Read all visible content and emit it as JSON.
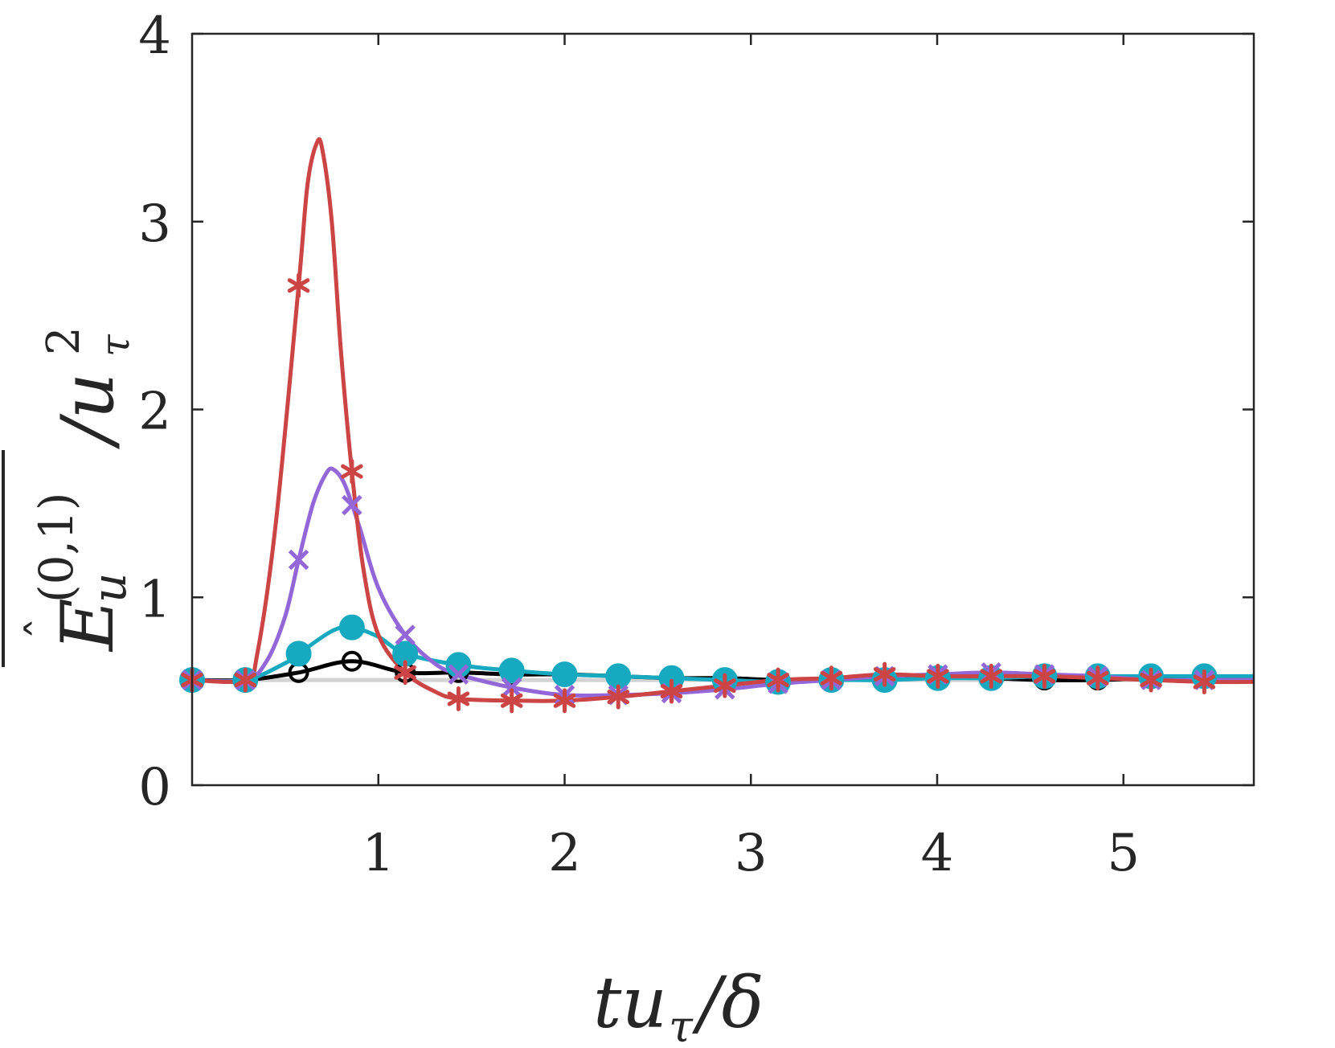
{
  "chart_data": {
    "type": "line",
    "title": "",
    "xlabel": "tu_τ/δ",
    "ylabel": "Ê_u^(0,1) / u_τ^2",
    "xlim": [
      0,
      5.7
    ],
    "ylim": [
      0,
      4
    ],
    "xticks": [
      1,
      2,
      3,
      4,
      5
    ],
    "yticks": [
      0,
      1,
      2,
      3,
      4
    ],
    "grid": false,
    "reference_line": {
      "y": 0.56,
      "color": "#d3d3d3"
    },
    "series": [
      {
        "name": "black-circles",
        "color": "#000000",
        "marker": "circle-open",
        "x": [
          0,
          0.286,
          0.572,
          0.858,
          1.144,
          1.43,
          1.716,
          2.0,
          2.288,
          2.574,
          2.86,
          3.146,
          3.432,
          3.718,
          4.004,
          4.29,
          4.576,
          4.862,
          5.148,
          5.434,
          5.7
        ],
        "y": [
          0.56,
          0.56,
          0.6,
          0.66,
          0.6,
          0.6,
          0.59,
          0.59,
          0.58,
          0.57,
          0.57,
          0.56,
          0.56,
          0.57,
          0.58,
          0.57,
          0.56,
          0.56,
          0.57,
          0.57,
          0.57
        ],
        "marker_x": [
          0,
          0.286,
          0.572,
          0.858,
          1.144,
          1.43,
          1.716,
          2.0,
          2.288,
          2.574,
          2.86,
          3.146,
          3.432,
          3.718,
          4.004,
          4.29,
          4.576,
          4.862,
          5.148,
          5.434
        ]
      },
      {
        "name": "teal-dots",
        "color": "#17a9c0",
        "marker": "circle-filled",
        "x": [
          0,
          0.286,
          0.5,
          0.572,
          0.75,
          0.858,
          1.0,
          1.144,
          1.43,
          1.716,
          2.0,
          2.288,
          2.574,
          2.86,
          3.146,
          3.432,
          3.718,
          4.004,
          4.29,
          4.576,
          4.862,
          5.148,
          5.434,
          5.7
        ],
        "y": [
          0.56,
          0.56,
          0.65,
          0.7,
          0.82,
          0.84,
          0.79,
          0.7,
          0.64,
          0.61,
          0.59,
          0.58,
          0.57,
          0.56,
          0.55,
          0.56,
          0.56,
          0.57,
          0.57,
          0.58,
          0.58,
          0.58,
          0.58,
          0.58
        ],
        "marker_x": [
          0,
          0.286,
          0.572,
          0.858,
          1.144,
          1.43,
          1.716,
          2.0,
          2.288,
          2.574,
          2.86,
          3.146,
          3.432,
          3.718,
          4.004,
          4.29,
          4.576,
          4.862,
          5.148,
          5.434
        ]
      },
      {
        "name": "purple-crosses",
        "color": "#9467d8",
        "marker": "x",
        "x": [
          0,
          0.286,
          0.4,
          0.5,
          0.572,
          0.65,
          0.72,
          0.76,
          0.82,
          0.9,
          1.0,
          1.144,
          1.3,
          1.43,
          1.716,
          2.0,
          2.288,
          2.574,
          2.86,
          3.146,
          3.432,
          3.718,
          4.004,
          4.29,
          4.576,
          4.862,
          5.148,
          5.434,
          5.7
        ],
        "y": [
          0.56,
          0.56,
          0.66,
          0.9,
          1.2,
          1.5,
          1.66,
          1.68,
          1.6,
          1.37,
          1.05,
          0.8,
          0.65,
          0.59,
          0.52,
          0.48,
          0.48,
          0.49,
          0.51,
          0.54,
          0.56,
          0.58,
          0.59,
          0.6,
          0.59,
          0.58,
          0.56,
          0.56,
          0.56
        ],
        "marker_x": [
          0,
          0.286,
          0.572,
          0.858,
          1.144,
          1.43,
          1.716,
          2.0,
          2.288,
          2.574,
          2.86,
          3.146,
          3.432,
          3.718,
          4.004,
          4.29,
          4.576,
          4.862,
          5.148,
          5.434
        ]
      },
      {
        "name": "red-asterisks",
        "color": "#cc4444",
        "marker": "asterisk",
        "x": [
          0,
          0.286,
          0.35,
          0.45,
          0.572,
          0.62,
          0.67,
          0.7,
          0.75,
          0.8,
          0.858,
          0.92,
          1.0,
          1.144,
          1.3,
          1.43,
          1.716,
          2.0,
          2.288,
          2.574,
          2.86,
          3.146,
          3.432,
          3.718,
          4.004,
          4.29,
          4.576,
          4.862,
          5.148,
          5.434,
          5.7
        ],
        "y": [
          0.56,
          0.56,
          0.7,
          1.4,
          2.66,
          3.2,
          3.42,
          3.38,
          3.0,
          2.3,
          1.67,
          1.15,
          0.8,
          0.6,
          0.5,
          0.46,
          0.45,
          0.45,
          0.47,
          0.5,
          0.53,
          0.56,
          0.57,
          0.59,
          0.58,
          0.58,
          0.58,
          0.57,
          0.56,
          0.55,
          0.55
        ],
        "marker_x": [
          0,
          0.286,
          0.572,
          0.858,
          1.144,
          1.43,
          1.716,
          2.0,
          2.288,
          2.574,
          2.86,
          3.146,
          3.432,
          3.718,
          4.004,
          4.29,
          4.576,
          4.862,
          5.148,
          5.434
        ]
      }
    ]
  }
}
